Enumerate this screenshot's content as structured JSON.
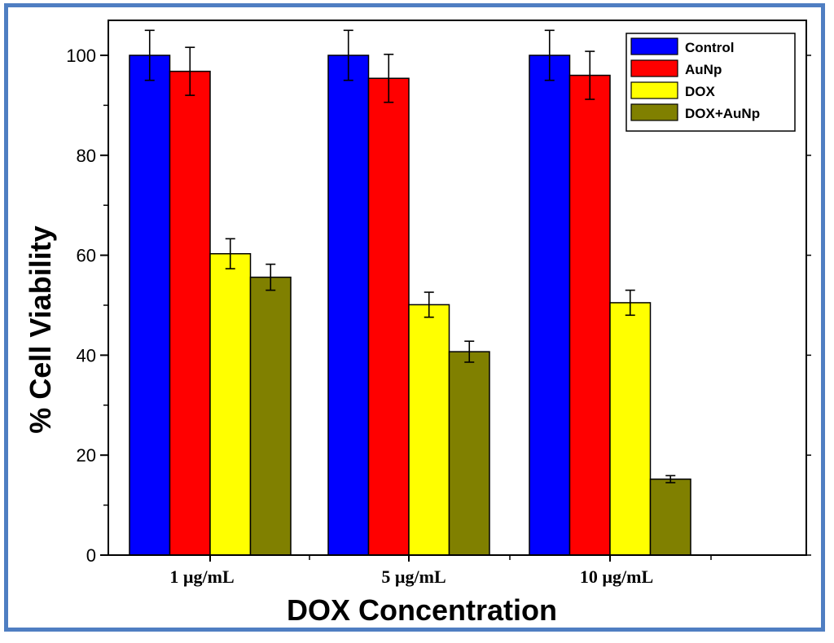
{
  "chart_data": {
    "type": "bar",
    "title": "",
    "xlabel": "DOX Concentration",
    "ylabel": "% Cell Viability",
    "ylim": [
      0,
      107
    ],
    "yticks": [
      0,
      20,
      40,
      60,
      80,
      100
    ],
    "ytick_labels": [
      "0",
      "20",
      "40",
      "60",
      "80",
      "100"
    ],
    "categories": [
      "1 µg/mL",
      "5 µg/mL",
      "10 µg/mL"
    ],
    "legend_position": "top-right",
    "series": [
      {
        "name": "Control",
        "color": "#0000ff",
        "values": [
          100,
          100,
          100
        ],
        "errors": [
          5,
          5,
          5
        ]
      },
      {
        "name": "AuNp",
        "color": "#ff0000",
        "values": [
          96.8,
          95.4,
          96.0
        ],
        "errors": [
          4.8,
          4.8,
          4.8
        ]
      },
      {
        "name": "DOX",
        "color": "#ffff00",
        "values": [
          60.3,
          50.1,
          50.5
        ],
        "errors": [
          3.0,
          2.5,
          2.5
        ]
      },
      {
        "name": "DOX+AuNp",
        "color": "#808000",
        "values": [
          55.6,
          40.7,
          15.2
        ],
        "errors": [
          2.6,
          2.1,
          0.7
        ]
      }
    ]
  }
}
